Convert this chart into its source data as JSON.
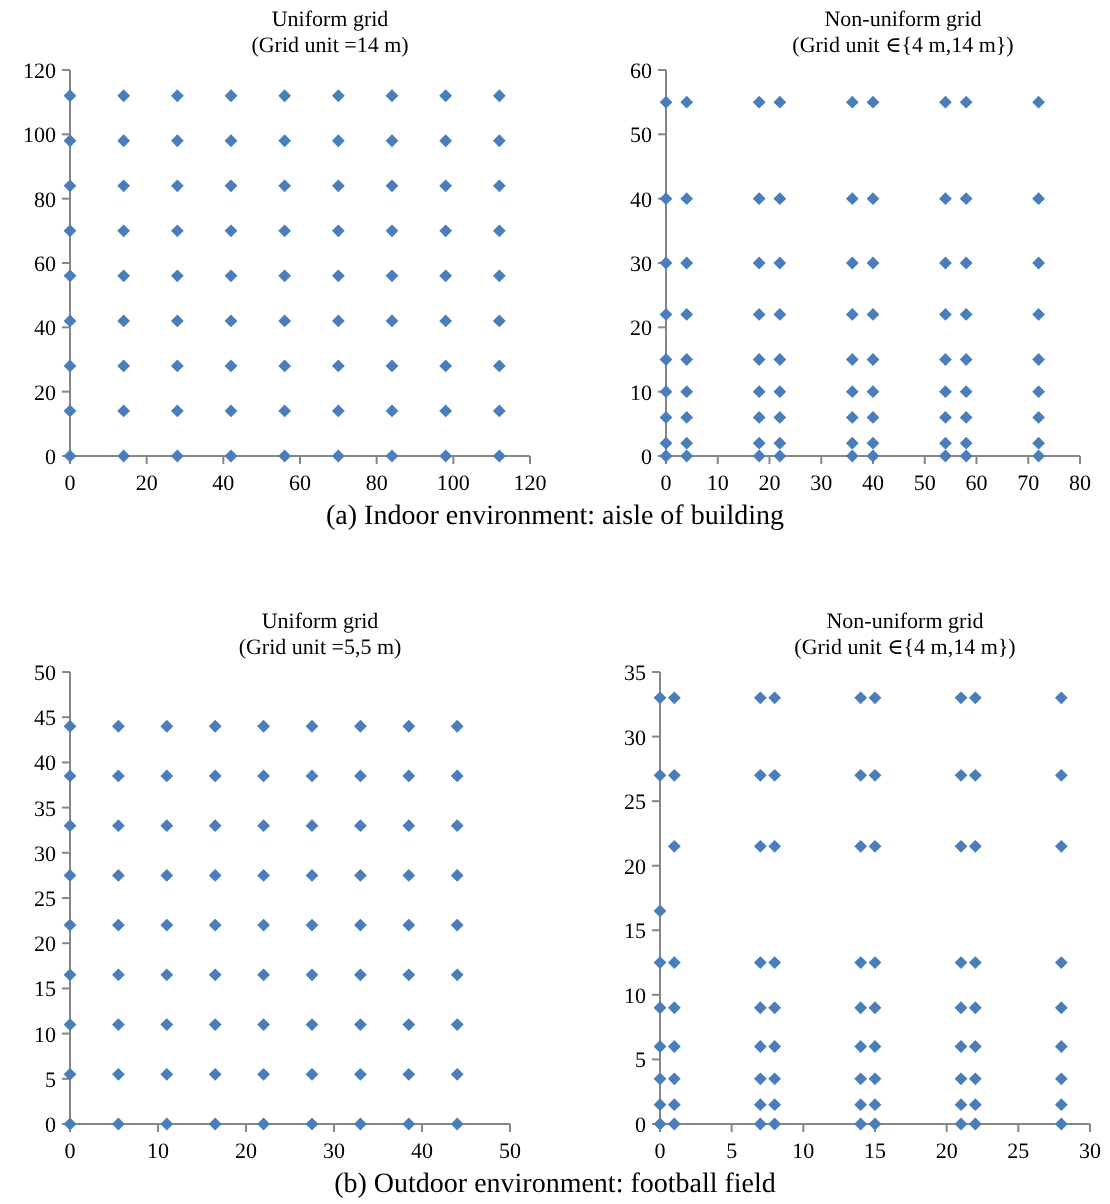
{
  "chart_data": [
    {
      "type": "scatter",
      "title": "Uniform grid",
      "subtitle": "(Grid unit =14 m)",
      "marker": "diamond",
      "xlim": [
        0,
        120
      ],
      "ylim": [
        0,
        120
      ],
      "xticks": [
        0,
        20,
        40,
        60,
        80,
        100,
        120
      ],
      "yticks": [
        0,
        20,
        40,
        60,
        80,
        100,
        120
      ],
      "annotations": [
        "(a) Indoor environment: aisle of building"
      ],
      "series": [
        {
          "color": "#4a7ebb",
          "x": [
            0,
            0,
            0,
            0,
            0,
            0,
            0,
            0,
            0,
            14,
            14,
            14,
            14,
            14,
            14,
            14,
            14,
            14,
            28,
            28,
            28,
            28,
            28,
            28,
            28,
            28,
            28,
            42,
            42,
            42,
            42,
            42,
            42,
            42,
            42,
            42,
            56,
            56,
            56,
            56,
            56,
            56,
            56,
            56,
            56,
            70,
            70,
            70,
            70,
            70,
            70,
            70,
            70,
            70,
            84,
            84,
            84,
            84,
            84,
            84,
            84,
            84,
            84,
            98,
            98,
            98,
            98,
            98,
            98,
            98,
            98,
            98,
            112,
            112,
            112,
            112,
            112,
            112,
            112,
            112,
            112
          ],
          "values": [
            0,
            14,
            28,
            42,
            56,
            70,
            84,
            98,
            112,
            0,
            14,
            28,
            42,
            56,
            70,
            84,
            98,
            112,
            0,
            14,
            28,
            42,
            56,
            70,
            84,
            98,
            112,
            0,
            14,
            28,
            42,
            56,
            70,
            84,
            98,
            112,
            0,
            14,
            28,
            42,
            56,
            70,
            84,
            98,
            112,
            0,
            14,
            28,
            42,
            56,
            70,
            84,
            98,
            112,
            0,
            14,
            28,
            42,
            56,
            70,
            84,
            98,
            112,
            0,
            14,
            28,
            42,
            56,
            70,
            84,
            98,
            112,
            0,
            14,
            28,
            42,
            56,
            70,
            84,
            98,
            112
          ]
        }
      ]
    },
    {
      "type": "scatter",
      "title": "Non-uniform grid",
      "subtitle": "(Grid unit ∈{4 m,14 m})",
      "marker": "diamond",
      "xlim": [
        0,
        80
      ],
      "ylim": [
        0,
        60
      ],
      "xticks": [
        0,
        10,
        20,
        30,
        40,
        50,
        60,
        70,
        80
      ],
      "yticks": [
        0,
        10,
        20,
        30,
        40,
        50,
        60
      ],
      "series": [
        {
          "color": "#4a7ebb",
          "x": [
            0,
            0,
            0,
            0,
            0,
            0,
            0,
            0,
            0,
            4,
            4,
            4,
            4,
            4,
            4,
            4,
            4,
            4,
            18,
            18,
            18,
            18,
            18,
            18,
            18,
            18,
            18,
            22,
            22,
            22,
            22,
            22,
            22,
            22,
            22,
            22,
            36,
            36,
            36,
            36,
            36,
            36,
            36,
            36,
            36,
            40,
            40,
            40,
            40,
            40,
            40,
            40,
            40,
            40,
            54,
            54,
            54,
            54,
            54,
            54,
            54,
            54,
            54,
            58,
            58,
            58,
            58,
            58,
            58,
            58,
            58,
            58,
            72,
            72,
            72,
            72,
            72,
            72,
            72,
            72,
            72
          ],
          "values": [
            0,
            2,
            6,
            10,
            15,
            22,
            30,
            40,
            55,
            0,
            2,
            6,
            10,
            15,
            22,
            30,
            40,
            55,
            0,
            2,
            6,
            10,
            15,
            22,
            30,
            40,
            55,
            0,
            2,
            6,
            10,
            15,
            22,
            30,
            40,
            55,
            0,
            2,
            6,
            10,
            15,
            22,
            30,
            40,
            55,
            0,
            2,
            6,
            10,
            15,
            22,
            30,
            40,
            55,
            0,
            2,
            6,
            10,
            15,
            22,
            30,
            40,
            55,
            0,
            2,
            6,
            10,
            15,
            22,
            30,
            40,
            55,
            0,
            2,
            6,
            10,
            15,
            22,
            30,
            40,
            55
          ]
        }
      ]
    },
    {
      "type": "scatter",
      "title": "Uniform grid",
      "subtitle": "(Grid unit =5,5 m)",
      "marker": "diamond",
      "xlim": [
        0,
        50
      ],
      "ylim": [
        0,
        50
      ],
      "xticks": [
        0,
        10,
        20,
        30,
        40,
        50
      ],
      "yticks": [
        0,
        5,
        10,
        15,
        20,
        25,
        30,
        35,
        40,
        45,
        50
      ],
      "annotations": [
        "(b) Outdoor environment: football field"
      ],
      "series": [
        {
          "color": "#4a7ebb",
          "x": [
            0,
            0,
            0,
            0,
            0,
            0,
            0,
            0,
            0,
            5.5,
            5.5,
            5.5,
            5.5,
            5.5,
            5.5,
            5.5,
            5.5,
            5.5,
            11,
            11,
            11,
            11,
            11,
            11,
            11,
            11,
            11,
            16.5,
            16.5,
            16.5,
            16.5,
            16.5,
            16.5,
            16.5,
            16.5,
            16.5,
            22,
            22,
            22,
            22,
            22,
            22,
            22,
            22,
            22,
            27.5,
            27.5,
            27.5,
            27.5,
            27.5,
            27.5,
            27.5,
            27.5,
            27.5,
            33,
            33,
            33,
            33,
            33,
            33,
            33,
            33,
            33,
            38.5,
            38.5,
            38.5,
            38.5,
            38.5,
            38.5,
            38.5,
            38.5,
            38.5,
            44,
            44,
            44,
            44,
            44,
            44,
            44,
            44,
            44
          ],
          "values": [
            0,
            5.5,
            11,
            16.5,
            22,
            27.5,
            33,
            38.5,
            44,
            0,
            5.5,
            11,
            16.5,
            22,
            27.5,
            33,
            38.5,
            44,
            0,
            5.5,
            11,
            16.5,
            22,
            27.5,
            33,
            38.5,
            44,
            0,
            5.5,
            11,
            16.5,
            22,
            27.5,
            33,
            38.5,
            44,
            0,
            5.5,
            11,
            16.5,
            22,
            27.5,
            33,
            38.5,
            44,
            0,
            5.5,
            11,
            16.5,
            22,
            27.5,
            33,
            38.5,
            44,
            0,
            5.5,
            11,
            16.5,
            22,
            27.5,
            33,
            38.5,
            44,
            0,
            5.5,
            11,
            16.5,
            22,
            27.5,
            33,
            38.5,
            44,
            0,
            5.5,
            11,
            16.5,
            22,
            27.5,
            33,
            38.5,
            44
          ]
        }
      ]
    },
    {
      "type": "scatter",
      "title": "Non-uniform grid",
      "subtitle": "(Grid unit ∈{4 m,14 m})",
      "marker": "diamond",
      "xlim": [
        0,
        30
      ],
      "ylim": [
        0,
        35
      ],
      "xticks": [
        0,
        5,
        10,
        15,
        20,
        25,
        30
      ],
      "yticks": [
        0,
        5,
        10,
        15,
        20,
        25,
        30,
        35
      ],
      "series": [
        {
          "color": "#4a7ebb",
          "x": [
            0,
            0,
            0,
            0,
            0,
            0,
            0,
            0,
            0,
            1,
            1,
            1,
            1,
            1,
            1,
            1,
            1,
            1,
            7,
            7,
            7,
            7,
            7,
            7,
            7,
            7,
            7,
            8,
            8,
            8,
            8,
            8,
            8,
            8,
            8,
            8,
            14,
            14,
            14,
            14,
            14,
            14,
            14,
            14,
            14,
            15,
            15,
            15,
            15,
            15,
            15,
            15,
            15,
            15,
            21,
            21,
            21,
            21,
            21,
            21,
            21,
            21,
            21,
            22,
            22,
            22,
            22,
            22,
            22,
            22,
            22,
            22,
            28,
            28,
            28,
            28,
            28,
            28,
            28,
            28,
            28
          ],
          "values": [
            0,
            1.5,
            3.5,
            6,
            9,
            12.5,
            16.5,
            27,
            33,
            0,
            1.5,
            3.5,
            6,
            9,
            12.5,
            21.5,
            27,
            33,
            0,
            1.5,
            3.5,
            6,
            9,
            12.5,
            21.5,
            27,
            33,
            0,
            1.5,
            3.5,
            6,
            9,
            12.5,
            21.5,
            27,
            33,
            0,
            1.5,
            3.5,
            6,
            9,
            12.5,
            21.5,
            27,
            33,
            0,
            1.5,
            3.5,
            6,
            9,
            12.5,
            21.5,
            27,
            33,
            0,
            1.5,
            3.5,
            6,
            9,
            12.5,
            21.5,
            27,
            33,
            0,
            1.5,
            3.5,
            6,
            9,
            12.5,
            21.5,
            27,
            33,
            0,
            1.5,
            3.5,
            6,
            9,
            12.5,
            21.5,
            27,
            33
          ]
        }
      ]
    }
  ]
}
